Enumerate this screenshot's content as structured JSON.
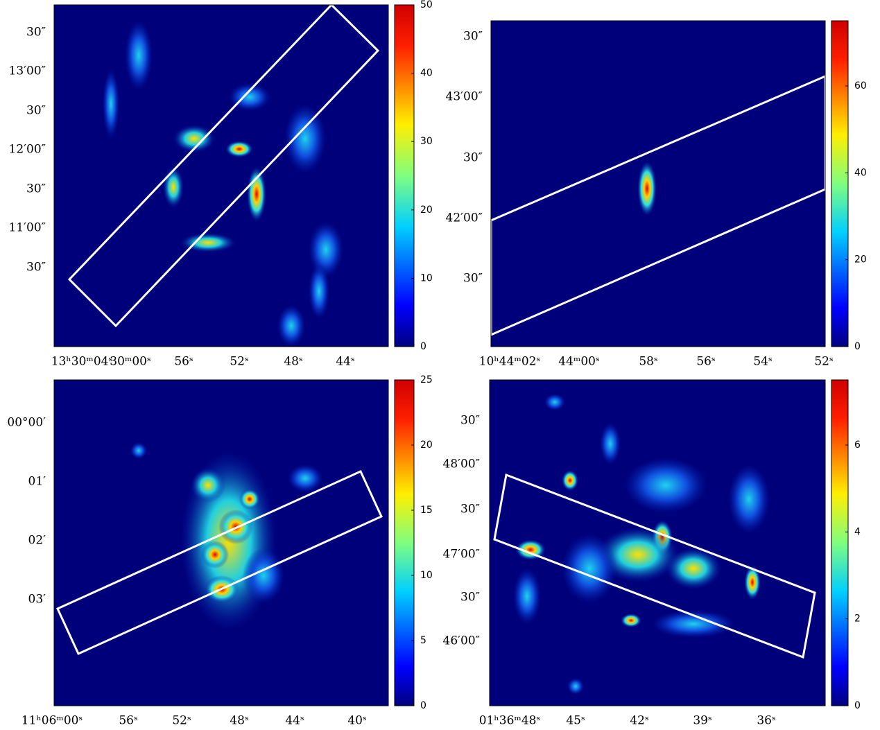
{
  "panels": [
    {
      "x_labels": [
        "13ʰ30ᵐ04ˢ",
        "30ᵐ00ˢ",
        "56ˢ",
        "52ˢ",
        "48ˢ",
        "44ˢ"
      ],
      "y_labels": [
        "30″",
        "13′00″",
        "30″",
        "12′00″",
        "30″",
        "11′00″",
        "30″"
      ],
      "colorbar": {
        "range": [
          0,
          50
        ],
        "ticks": [
          0,
          10,
          20,
          30,
          40,
          50
        ]
      }
    },
    {
      "x_labels": [
        "10ʰ44ᵐ02ˢ",
        "44ᵐ00ˢ",
        "58ˢ",
        "56ˢ",
        "54ˢ",
        "52ˢ"
      ],
      "y_labels": [
        "30″",
        "43′00″",
        "30″",
        "42′00″",
        "30″"
      ],
      "colorbar": {
        "range": [
          0,
          75
        ],
        "ticks": [
          0,
          20,
          40,
          60
        ]
      }
    },
    {
      "x_labels": [
        "11ʰ06ᵐ00ˢ",
        "56ˢ",
        "52ˢ",
        "48ˢ",
        "44ˢ",
        "40ˢ"
      ],
      "y_labels": [
        "00°00′",
        "01′",
        "02′",
        "03′"
      ],
      "colorbar": {
        "range": [
          0,
          25
        ],
        "ticks": [
          0,
          5,
          10,
          15,
          20,
          25
        ]
      }
    },
    {
      "x_labels": [
        "01ʰ36ᵐ48ˢ",
        "45ˢ",
        "42ˢ",
        "39ˢ",
        "36ˢ"
      ],
      "y_labels": [
        "30″",
        "48′00″",
        "30″",
        "47′00″",
        "30″",
        "46′00″"
      ],
      "colorbar": {
        "range": [
          0,
          7.5
        ],
        "ticks": [
          0,
          2,
          4,
          6
        ]
      }
    }
  ]
}
